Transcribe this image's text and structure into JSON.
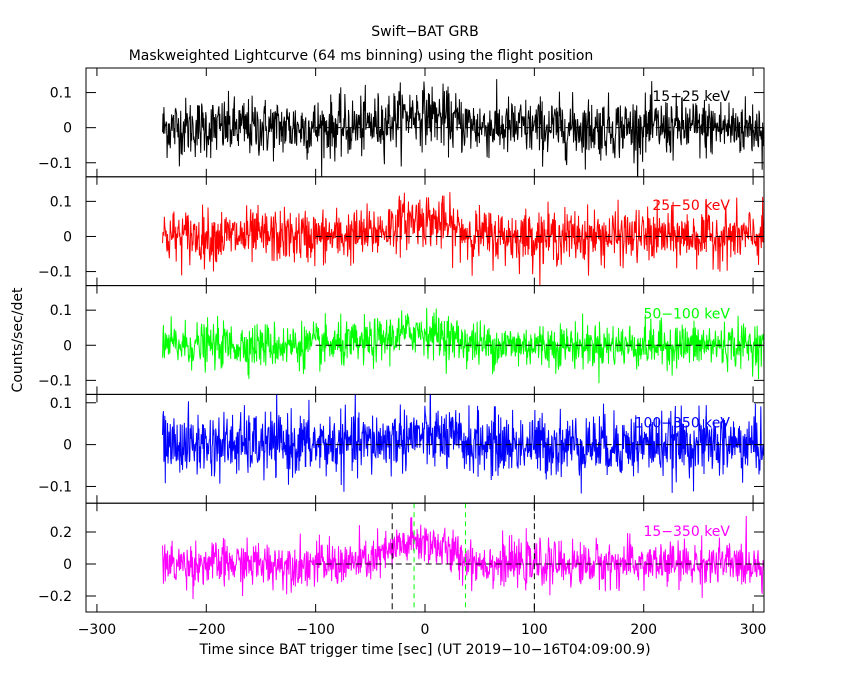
{
  "header": {
    "title": "Swift−BAT GRB",
    "subtitle": "Maskweighted Lightcurve (64 ms binning) using the flight position"
  },
  "chart_data": {
    "type": "line",
    "xlabel": "Time since BAT trigger time [sec] (UT 2019−10−16T04:09:00.9)",
    "ylabel": "Counts/sec/det",
    "xlim": [
      -310,
      310
    ],
    "x_ticks": [
      -300,
      -200,
      -100,
      0,
      100,
      200,
      300
    ],
    "x_tick_labels": [
      "−300",
      "−200",
      "−100",
      "0",
      "100",
      "200",
      "300"
    ],
    "data_range": [
      -240,
      310
    ],
    "zero_line_start": -100,
    "burst_center": -5,
    "vertical_markers": {
      "black_dashed": [
        -30,
        100
      ],
      "green_dashed": [
        -10,
        37
      ]
    },
    "panels": [
      {
        "band": "15−25 keV",
        "color": "#000000",
        "ylim": [
          -0.14,
          0.17
        ],
        "y_ticks": [
          -0.1,
          0,
          0.1
        ],
        "y_tick_labels": [
          "−0.1",
          "0",
          "0.1"
        ],
        "noise_sigma": 0.042,
        "peak": 0.04
      },
      {
        "band": "25−50 keV",
        "color": "#ff0000",
        "ylim": [
          -0.14,
          0.17
        ],
        "y_ticks": [
          -0.1,
          0,
          0.1
        ],
        "y_tick_labels": [
          "−0.1",
          "0",
          "0.1"
        ],
        "noise_sigma": 0.038,
        "peak": 0.05
      },
      {
        "band": "50−100 keV",
        "color": "#00ff00",
        "ylim": [
          -0.14,
          0.17
        ],
        "y_ticks": [
          -0.1,
          0,
          0.1
        ],
        "y_tick_labels": [
          "−0.1",
          "0",
          "0.1"
        ],
        "noise_sigma": 0.032,
        "peak": 0.04
      },
      {
        "band": "100−350 keV",
        "color": "#0000ff",
        "ylim": [
          -0.14,
          0.12
        ],
        "y_ticks": [
          -0.1,
          0,
          0.1
        ],
        "y_tick_labels": [
          "−0.1",
          "0",
          "0.1"
        ],
        "noise_sigma": 0.038,
        "peak": 0.02
      },
      {
        "band": "15−350 keV",
        "color": "#ff00ff",
        "ylim": [
          -0.3,
          0.38
        ],
        "y_ticks": [
          -0.2,
          0,
          0.2
        ],
        "y_tick_labels": [
          "−0.2",
          "0",
          "0.2"
        ],
        "noise_sigma": 0.07,
        "peak": 0.14
      }
    ]
  }
}
